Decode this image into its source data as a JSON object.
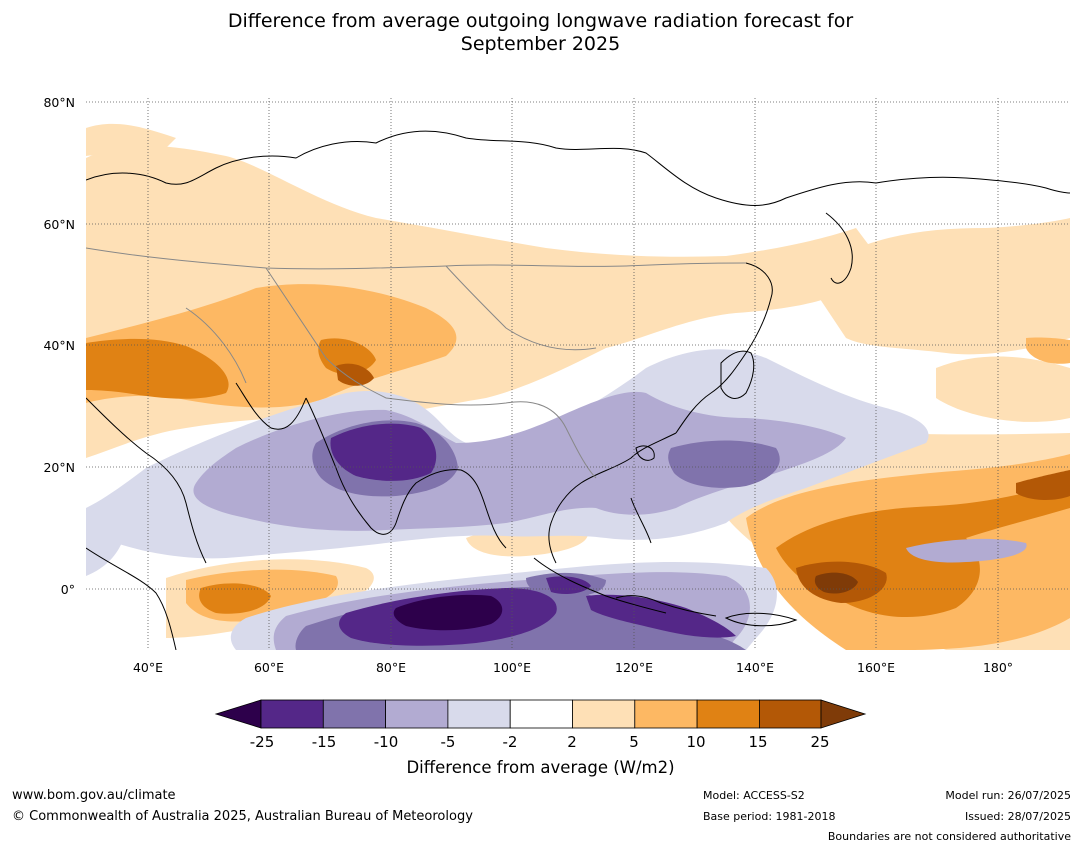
{
  "title": {
    "line1": "Difference from average outgoing longwave radiation forecast for",
    "line2": "September 2025"
  },
  "map": {
    "lat_labels": [
      "80°N",
      "60°N",
      "40°N",
      "20°N",
      "0°"
    ],
    "lon_labels": [
      "40°E",
      "60°E",
      "80°E",
      "100°E",
      "120°E",
      "140°E",
      "160°E",
      "180°"
    ],
    "gridline_style": "dotted grey",
    "coastlines": "black",
    "borders": "grey"
  },
  "colorbar": {
    "title": "Difference from average (W/m2)",
    "tick_labels": [
      "-25",
      "-15",
      "-10",
      "-5",
      "-2",
      "2",
      "5",
      "10",
      "15",
      "25"
    ],
    "colors": {
      "below_min": "#2d004b",
      "c_-25_-15": "#542788",
      "c_-15_-10": "#8073ac",
      "c_-10_-5": "#b2abd2",
      "c_-5_-2": "#d8daeb",
      "c_-2_2": "#ffffff",
      "c_2_5": "#fee0b6",
      "c_5_10": "#fdb863",
      "c_10_15": "#e08214",
      "c_15_25": "#b35806",
      "above_max": "#7f3b08"
    }
  },
  "footer": {
    "website": "www.bom.gov.au/climate",
    "copyright": "© Commonwealth of Australia 2025, Australian Bureau of Meteorology",
    "model": "Model: ACCESS-S2",
    "base_period": "Base period: 1981-2018",
    "model_run": "Model run: 26/07/2025",
    "issued": "Issued: 28/07/2025",
    "disclaimer": "Boundaries are not considered authoritative"
  }
}
